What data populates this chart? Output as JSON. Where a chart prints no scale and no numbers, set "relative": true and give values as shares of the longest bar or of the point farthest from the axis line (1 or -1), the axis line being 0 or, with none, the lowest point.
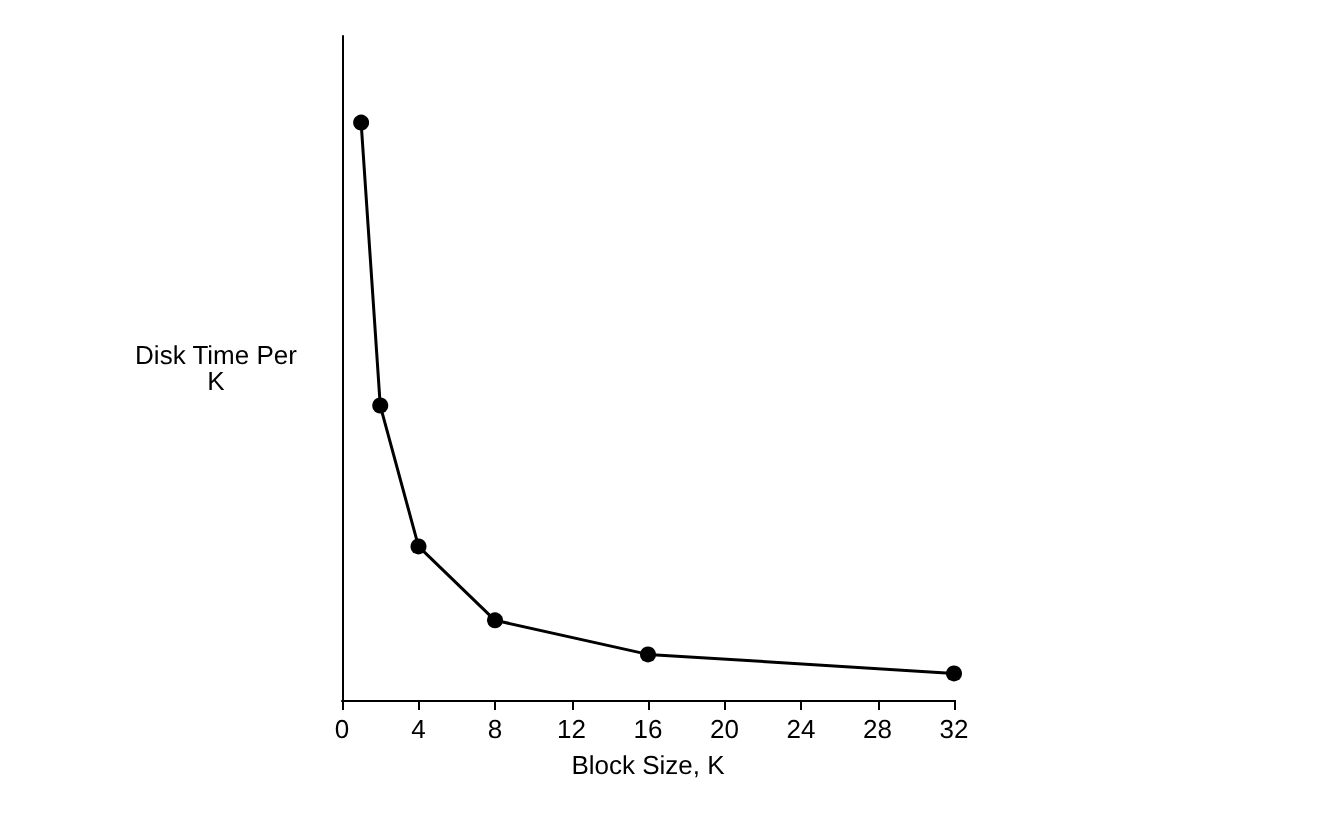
{
  "chart_data": {
    "type": "line",
    "xlabel": "Block Size, K",
    "ylabel": "Disk Time Per\nK",
    "relative": true,
    "x": [
      1,
      2,
      4,
      8,
      16,
      32
    ],
    "values": [
      1,
      0.51,
      0.266,
      0.138,
      0.079,
      0.046
    ],
    "color": "#000000",
    "xlim": [
      0,
      32
    ],
    "xticks": [
      0,
      4,
      8,
      12,
      16,
      20,
      24,
      28,
      32
    ],
    "marker": "circle",
    "line_style": "solid",
    "grid": false
  }
}
